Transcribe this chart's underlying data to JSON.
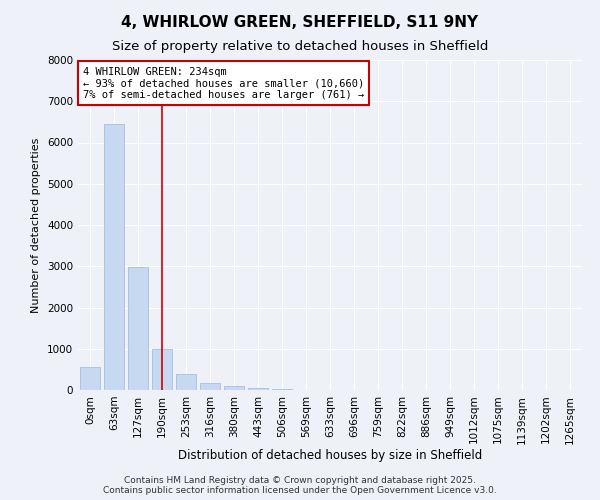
{
  "title": "4, WHIRLOW GREEN, SHEFFIELD, S11 9NY",
  "subtitle": "Size of property relative to detached houses in Sheffield",
  "xlabel": "Distribution of detached houses by size in Sheffield",
  "ylabel": "Number of detached properties",
  "bar_color": "#c6d9f0",
  "bar_edge_color": "#9ab8d8",
  "vline_color": "#cc0000",
  "annotation_box_color": "#cc0000",
  "annotation_text": "4 WHIRLOW GREEN: 234sqm\n← 93% of detached houses are smaller (10,660)\n7% of semi-detached houses are larger (761) →",
  "categories": [
    "0sqm",
    "63sqm",
    "127sqm",
    "190sqm",
    "253sqm",
    "316sqm",
    "380sqm",
    "443sqm",
    "506sqm",
    "569sqm",
    "633sqm",
    "696sqm",
    "759sqm",
    "822sqm",
    "886sqm",
    "949sqm",
    "1012sqm",
    "1075sqm",
    "1139sqm",
    "1202sqm",
    "1265sqm"
  ],
  "values": [
    550,
    6450,
    2980,
    1000,
    380,
    175,
    105,
    40,
    15,
    8,
    4,
    2,
    2,
    1,
    1,
    0,
    0,
    0,
    0,
    0,
    0
  ],
  "ylim": [
    0,
    8000
  ],
  "yticks": [
    0,
    1000,
    2000,
    3000,
    4000,
    5000,
    6000,
    7000,
    8000
  ],
  "vline_x": 3,
  "background_color": "#eef2f8",
  "plot_bg_color": "#eef2f8",
  "copyright_text": "Contains HM Land Registry data © Crown copyright and database right 2025.\nContains public sector information licensed under the Open Government Licence v3.0.",
  "title_fontsize": 11,
  "subtitle_fontsize": 9.5,
  "xlabel_fontsize": 8.5,
  "ylabel_fontsize": 8,
  "tick_fontsize": 7.5,
  "annotation_fontsize": 7.5,
  "copyright_fontsize": 6.5
}
